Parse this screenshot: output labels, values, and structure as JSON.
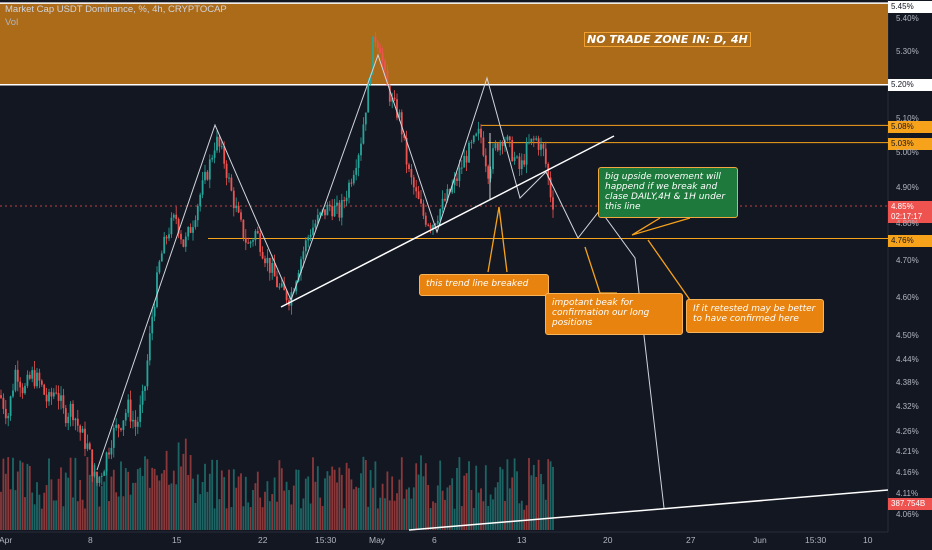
{
  "header": {
    "title": "Market Cap USDT Dominance, %, 4h, CRYPTOCAP",
    "volume_label": "Vol"
  },
  "zone_label": "NO TRADE ZONE IN: D, 4H",
  "notes": {
    "trend_break": "this trend line breaked",
    "important": "impotant beak for confirmation our long positions",
    "retest": "If it retested may be better to have confirmed here",
    "upside": "big upside movement will happend if we break and clase DAILY,4H & 1H under this line"
  },
  "axis": {
    "price_ticks": [
      "5.40%",
      "5.30%",
      "5.10%",
      "5.00%",
      "4.90%",
      "4.80%",
      "4.70%",
      "4.60%",
      "4.50%",
      "4.44%",
      "4.38%",
      "4.32%",
      "4.26%",
      "4.21%",
      "4.16%",
      "4.11%",
      "4.06%"
    ],
    "date_ticks": [
      "Apr",
      "8",
      "15",
      "22",
      "15:30",
      "May",
      "6",
      "13",
      "20",
      "27",
      "Jun",
      "15:30",
      "10"
    ],
    "price_labels": {
      "top": "5.45%",
      "zone_bottom": "5.20%",
      "r1": "5.08%",
      "r2": "5.03%",
      "current": "4.85%",
      "countdown": "02:17:17",
      "support": "4.76%",
      "volume": "387.754B"
    }
  },
  "colors": {
    "background": "#131722",
    "up": "#26a69a",
    "down": "#ef5350",
    "zone": "#c77a17",
    "level": "#f7a21b",
    "note_orange": "#e8830f",
    "note_green": "#1d7a3c"
  },
  "chart_data": {
    "type": "candlestick",
    "title": "Market Cap USDT Dominance, %, 4h, CRYPTOCAP",
    "y_scale": "log",
    "ylim": [
      4.04,
      5.46
    ],
    "x_range": [
      "Apr",
      "10"
    ],
    "levels": {
      "no_trade_zone": [
        5.2,
        5.45
      ],
      "resistance_1": 5.08,
      "resistance_2": 5.03,
      "support": 4.76,
      "current": 4.85
    },
    "close_path": [
      [
        0,
        4.35
      ],
      [
        8,
        4.3
      ],
      [
        16,
        4.42
      ],
      [
        24,
        4.36
      ],
      [
        32,
        4.4
      ],
      [
        40,
        4.38
      ],
      [
        48,
        4.33
      ],
      [
        56,
        4.37
      ],
      [
        64,
        4.3
      ],
      [
        72,
        4.32
      ],
      [
        80,
        4.26
      ],
      [
        88,
        4.22
      ],
      [
        96,
        4.13
      ],
      [
        104,
        4.18
      ],
      [
        112,
        4.25
      ],
      [
        120,
        4.28
      ],
      [
        128,
        4.32
      ],
      [
        136,
        4.27
      ],
      [
        144,
        4.35
      ],
      [
        152,
        4.55
      ],
      [
        160,
        4.7
      ],
      [
        168,
        4.78
      ],
      [
        176,
        4.82
      ],
      [
        184,
        4.74
      ],
      [
        192,
        4.8
      ],
      [
        200,
        4.88
      ],
      [
        208,
        4.95
      ],
      [
        216,
        5.04
      ],
      [
        224,
        4.98
      ],
      [
        232,
        4.88
      ],
      [
        240,
        4.8
      ],
      [
        248,
        4.74
      ],
      [
        256,
        4.78
      ],
      [
        264,
        4.72
      ],
      [
        272,
        4.67
      ],
      [
        280,
        4.62
      ],
      [
        290,
        4.6
      ],
      [
        300,
        4.7
      ],
      [
        310,
        4.78
      ],
      [
        320,
        4.82
      ],
      [
        330,
        4.85
      ],
      [
        340,
        4.83
      ],
      [
        350,
        4.92
      ],
      [
        360,
        5.02
      ],
      [
        368,
        5.18
      ],
      [
        374,
        5.35
      ],
      [
        380,
        5.32
      ],
      [
        386,
        5.2
      ],
      [
        392,
        5.15
      ],
      [
        400,
        5.1
      ],
      [
        408,
        4.95
      ],
      [
        416,
        4.88
      ],
      [
        424,
        4.82
      ],
      [
        432,
        4.8
      ],
      [
        440,
        4.84
      ],
      [
        448,
        4.88
      ],
      [
        456,
        4.92
      ],
      [
        464,
        4.98
      ],
      [
        472,
        5.02
      ],
      [
        480,
        5.06
      ],
      [
        488,
        4.95
      ],
      [
        496,
        5.02
      ],
      [
        504,
        5.05
      ],
      [
        512,
        5.0
      ],
      [
        520,
        4.95
      ],
      [
        528,
        5.02
      ],
      [
        536,
        5.04
      ],
      [
        544,
        5.0
      ],
      [
        552,
        4.86
      ]
    ],
    "volume_max": "387.754B"
  }
}
